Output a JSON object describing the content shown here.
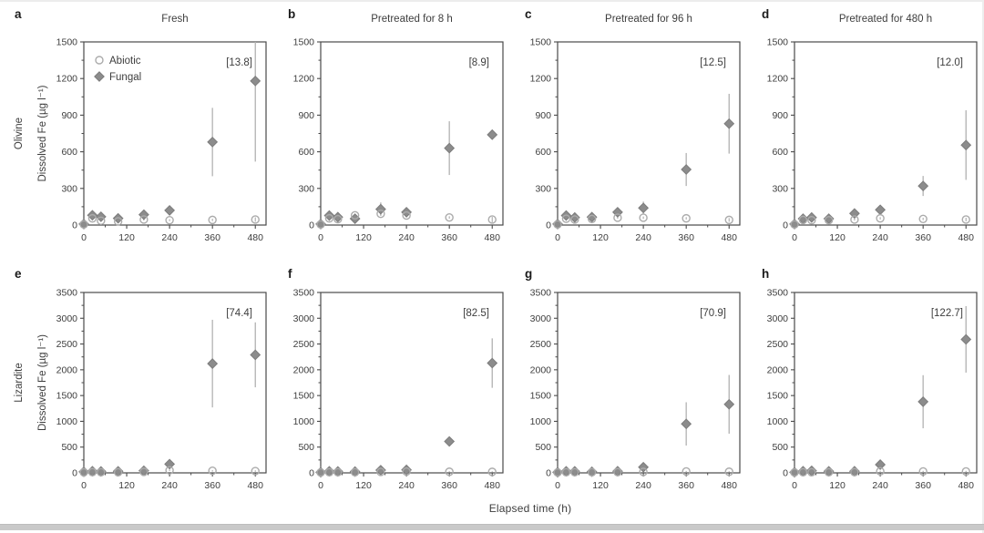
{
  "figure": {
    "x_axis_title": "Elapsed time (h)",
    "legend": {
      "abiotic_label": "Abiotic",
      "fungal_label": "Fungal"
    },
    "x_ticks": [
      0,
      120,
      240,
      360,
      480
    ],
    "x_minor_step": 60,
    "colors": {
      "fungal_fill": "#8c8c8c",
      "fungal_edge": "#7c7c7c",
      "abiotic_stroke": "#ababab",
      "error_bar": "#b2b2b2",
      "axis": "#4a4a4a",
      "text": "#3d3d3d",
      "panel_letter": "#1a1a1a"
    }
  },
  "chart_data": [
    {
      "id": "a",
      "type": "scatter",
      "row": 0,
      "col": 0,
      "title": "Fresh",
      "row_label": "Olivine",
      "y_axis_label": "Dissolved Fe (µg l⁻¹)",
      "annotation": "[13.8]",
      "show_legend": true,
      "xlim": [
        0,
        510
      ],
      "ylim": [
        0,
        1500
      ],
      "yticks": [
        0,
        300,
        600,
        900,
        1200,
        1500
      ],
      "y_minor_step": 150,
      "x": [
        0,
        24,
        48,
        96,
        168,
        240,
        360,
        480
      ],
      "series": [
        {
          "name": "Abiotic",
          "y": [
            5,
            55,
            35,
            30,
            45,
            40,
            42,
            45
          ],
          "yerr": [
            2,
            8,
            8,
            6,
            8,
            8,
            10,
            18
          ]
        },
        {
          "name": "Fungal",
          "y": [
            8,
            80,
            68,
            55,
            85,
            120,
            680,
            1180
          ],
          "yerr": [
            4,
            15,
            12,
            10,
            15,
            25,
            280,
            660
          ]
        }
      ]
    },
    {
      "id": "b",
      "type": "scatter",
      "row": 0,
      "col": 1,
      "title": "Pretreated for 8 h",
      "row_label": "",
      "y_axis_label": "",
      "annotation": "[8.9]",
      "show_legend": false,
      "xlim": [
        0,
        510
      ],
      "ylim": [
        0,
        1500
      ],
      "yticks": [
        0,
        300,
        600,
        900,
        1200,
        1500
      ],
      "y_minor_step": 150,
      "x": [
        0,
        24,
        48,
        96,
        168,
        240,
        360,
        480
      ],
      "series": [
        {
          "name": "Abiotic",
          "y": [
            5,
            55,
            48,
            80,
            92,
            78,
            62,
            45
          ],
          "yerr": [
            2,
            8,
            8,
            10,
            10,
            10,
            10,
            22
          ]
        },
        {
          "name": "Fungal",
          "y": [
            8,
            78,
            65,
            52,
            130,
            105,
            630,
            740
          ],
          "yerr": [
            4,
            12,
            10,
            10,
            55,
            28,
            220,
            35
          ]
        }
      ]
    },
    {
      "id": "c",
      "type": "scatter",
      "row": 0,
      "col": 2,
      "title": "Pretreated for 96 h",
      "row_label": "",
      "y_axis_label": "",
      "annotation": "[12.5]",
      "show_legend": false,
      "xlim": [
        0,
        510
      ],
      "ylim": [
        0,
        1500
      ],
      "yticks": [
        0,
        300,
        600,
        900,
        1200,
        1500
      ],
      "y_minor_step": 150,
      "x": [
        0,
        24,
        48,
        96,
        168,
        240,
        360,
        480
      ],
      "series": [
        {
          "name": "Abiotic",
          "y": [
            5,
            52,
            45,
            50,
            60,
            60,
            55,
            42
          ],
          "yerr": [
            2,
            8,
            8,
            8,
            8,
            10,
            10,
            15
          ]
        },
        {
          "name": "Fungal",
          "y": [
            8,
            78,
            62,
            65,
            105,
            140,
            455,
            830
          ],
          "yerr": [
            4,
            12,
            10,
            10,
            22,
            52,
            135,
            245
          ]
        }
      ]
    },
    {
      "id": "d",
      "type": "scatter",
      "row": 0,
      "col": 3,
      "title": "Pretreated for 480 h",
      "row_label": "",
      "y_axis_label": "",
      "annotation": "[12.0]",
      "show_legend": false,
      "xlim": [
        0,
        510
      ],
      "ylim": [
        0,
        1500
      ],
      "yticks": [
        0,
        300,
        600,
        900,
        1200,
        1500
      ],
      "y_minor_step": 150,
      "x": [
        0,
        24,
        48,
        96,
        168,
        240,
        360,
        480
      ],
      "series": [
        {
          "name": "Abiotic",
          "y": [
            5,
            42,
            40,
            40,
            45,
            55,
            50,
            45
          ],
          "yerr": [
            2,
            8,
            8,
            8,
            8,
            10,
            10,
            15
          ]
        },
        {
          "name": "Fungal",
          "y": [
            8,
            52,
            62,
            52,
            95,
            125,
            320,
            655
          ],
          "yerr": [
            4,
            10,
            12,
            10,
            20,
            25,
            82,
            285
          ]
        }
      ]
    },
    {
      "id": "e",
      "type": "scatter",
      "row": 1,
      "col": 0,
      "title": "",
      "row_label": "Lizardite",
      "y_axis_label": "Dissolved Fe (µg l⁻¹)",
      "annotation": "[74.4]",
      "show_legend": false,
      "xlim": [
        0,
        510
      ],
      "ylim": [
        0,
        3500
      ],
      "yticks": [
        0,
        500,
        1000,
        1500,
        2000,
        2500,
        3000,
        3500
      ],
      "y_minor_step": 250,
      "x": [
        0,
        24,
        48,
        96,
        168,
        240,
        360,
        480
      ],
      "series": [
        {
          "name": "Abiotic",
          "y": [
            10,
            15,
            12,
            12,
            20,
            50,
            40,
            35
          ],
          "yerr": [
            4,
            5,
            5,
            5,
            8,
            15,
            15,
            15
          ]
        },
        {
          "name": "Fungal",
          "y": [
            20,
            32,
            28,
            30,
            42,
            170,
            2120,
            2290
          ],
          "yerr": [
            8,
            10,
            10,
            10,
            15,
            60,
            850,
            630
          ]
        }
      ]
    },
    {
      "id": "f",
      "type": "scatter",
      "row": 1,
      "col": 1,
      "title": "",
      "row_label": "",
      "y_axis_label": "",
      "annotation": "[82.5]",
      "show_legend": false,
      "xlim": [
        0,
        510
      ],
      "ylim": [
        0,
        3500
      ],
      "yticks": [
        0,
        500,
        1000,
        1500,
        2000,
        2500,
        3000,
        3500
      ],
      "y_minor_step": 250,
      "x": [
        0,
        24,
        48,
        96,
        168,
        240,
        360,
        480
      ],
      "series": [
        {
          "name": "Abiotic",
          "y": [
            8,
            12,
            12,
            12,
            18,
            25,
            22,
            20
          ],
          "yerr": [
            3,
            5,
            5,
            5,
            6,
            8,
            10,
            10
          ]
        },
        {
          "name": "Fungal",
          "y": [
            12,
            30,
            28,
            25,
            52,
            58,
            610,
            2130
          ],
          "yerr": [
            5,
            10,
            10,
            10,
            15,
            20,
            45,
            480
          ]
        }
      ]
    },
    {
      "id": "g",
      "type": "scatter",
      "row": 1,
      "col": 2,
      "title": "",
      "row_label": "",
      "y_axis_label": "",
      "annotation": "[70.9]",
      "show_legend": false,
      "xlim": [
        0,
        510
      ],
      "ylim": [
        0,
        3500
      ],
      "yticks": [
        0,
        500,
        1000,
        1500,
        2000,
        2500,
        3000,
        3500
      ],
      "y_minor_step": 250,
      "x": [
        0,
        24,
        48,
        96,
        168,
        240,
        360,
        480
      ],
      "series": [
        {
          "name": "Abiotic",
          "y": [
            8,
            12,
            12,
            12,
            15,
            20,
            28,
            22
          ],
          "yerr": [
            3,
            5,
            5,
            5,
            6,
            8,
            10,
            10
          ]
        },
        {
          "name": "Fungal",
          "y": [
            12,
            30,
            30,
            22,
            32,
            110,
            950,
            1330
          ],
          "yerr": [
            5,
            10,
            10,
            8,
            10,
            30,
            420,
            570
          ]
        }
      ]
    },
    {
      "id": "h",
      "type": "scatter",
      "row": 1,
      "col": 3,
      "title": "",
      "row_label": "",
      "y_axis_label": "",
      "annotation": "[122.7]",
      "show_legend": false,
      "xlim": [
        0,
        510
      ],
      "ylim": [
        0,
        3500
      ],
      "yticks": [
        0,
        500,
        1000,
        1500,
        2000,
        2500,
        3000,
        3500
      ],
      "y_minor_step": 250,
      "x": [
        0,
        24,
        48,
        96,
        168,
        240,
        360,
        480
      ],
      "series": [
        {
          "name": "Abiotic",
          "y": [
            8,
            12,
            12,
            12,
            15,
            30,
            28,
            28
          ],
          "yerr": [
            3,
            5,
            5,
            5,
            6,
            10,
            12,
            12
          ]
        },
        {
          "name": "Fungal",
          "y": [
            12,
            32,
            40,
            30,
            32,
            160,
            1380,
            2590
          ],
          "yerr": [
            5,
            10,
            12,
            10,
            12,
            50,
            515,
            645
          ]
        }
      ]
    }
  ]
}
